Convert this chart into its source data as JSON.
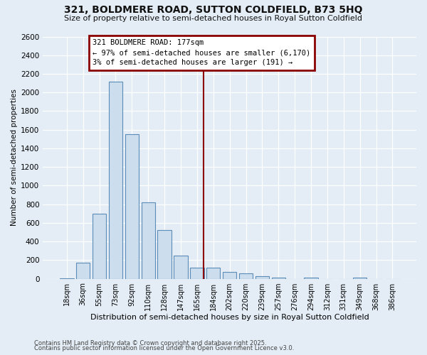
{
  "title": "321, BOLDMERE ROAD, SUTTON COLDFIELD, B73 5HQ",
  "subtitle": "Size of property relative to semi-detached houses in Royal Sutton Coldfield",
  "xlabel": "Distribution of semi-detached houses by size in Royal Sutton Coldfield",
  "ylabel": "Number of semi-detached properties",
  "categories": [
    "18sqm",
    "36sqm",
    "55sqm",
    "73sqm",
    "92sqm",
    "110sqm",
    "128sqm",
    "147sqm",
    "165sqm",
    "184sqm",
    "202sqm",
    "220sqm",
    "239sqm",
    "257sqm",
    "276sqm",
    "294sqm",
    "312sqm",
    "331sqm",
    "349sqm",
    "368sqm",
    "386sqm"
  ],
  "bar_heights": [
    5,
    175,
    695,
    2115,
    1550,
    820,
    520,
    250,
    120,
    115,
    70,
    55,
    25,
    10,
    0,
    15,
    0,
    0,
    10,
    0,
    0
  ],
  "bar_color": "#ccdded",
  "bar_edge_color": "#5b8db8",
  "annotation_title": "321 BOLDMERE ROAD: 177sqm",
  "annotation_line1": "← 97% of semi-detached houses are smaller (6,170)",
  "annotation_line2": "3% of semi-detached houses are larger (191) →",
  "annotation_box_edgecolor": "#8b0000",
  "vline_color": "#8b0000",
  "bg_color": "#e4edf5",
  "plot_bg_color": "#e4edf5",
  "grid_color": "#ffffff",
  "ylim_max": 2600,
  "yticks": [
    0,
    200,
    400,
    600,
    800,
    1000,
    1200,
    1400,
    1600,
    1800,
    2000,
    2200,
    2400,
    2600
  ],
  "footer1": "Contains HM Land Registry data © Crown copyright and database right 2025.",
  "footer2": "Contains public sector information licensed under the Open Government Licence v3.0.",
  "vline_idx": 8.42
}
